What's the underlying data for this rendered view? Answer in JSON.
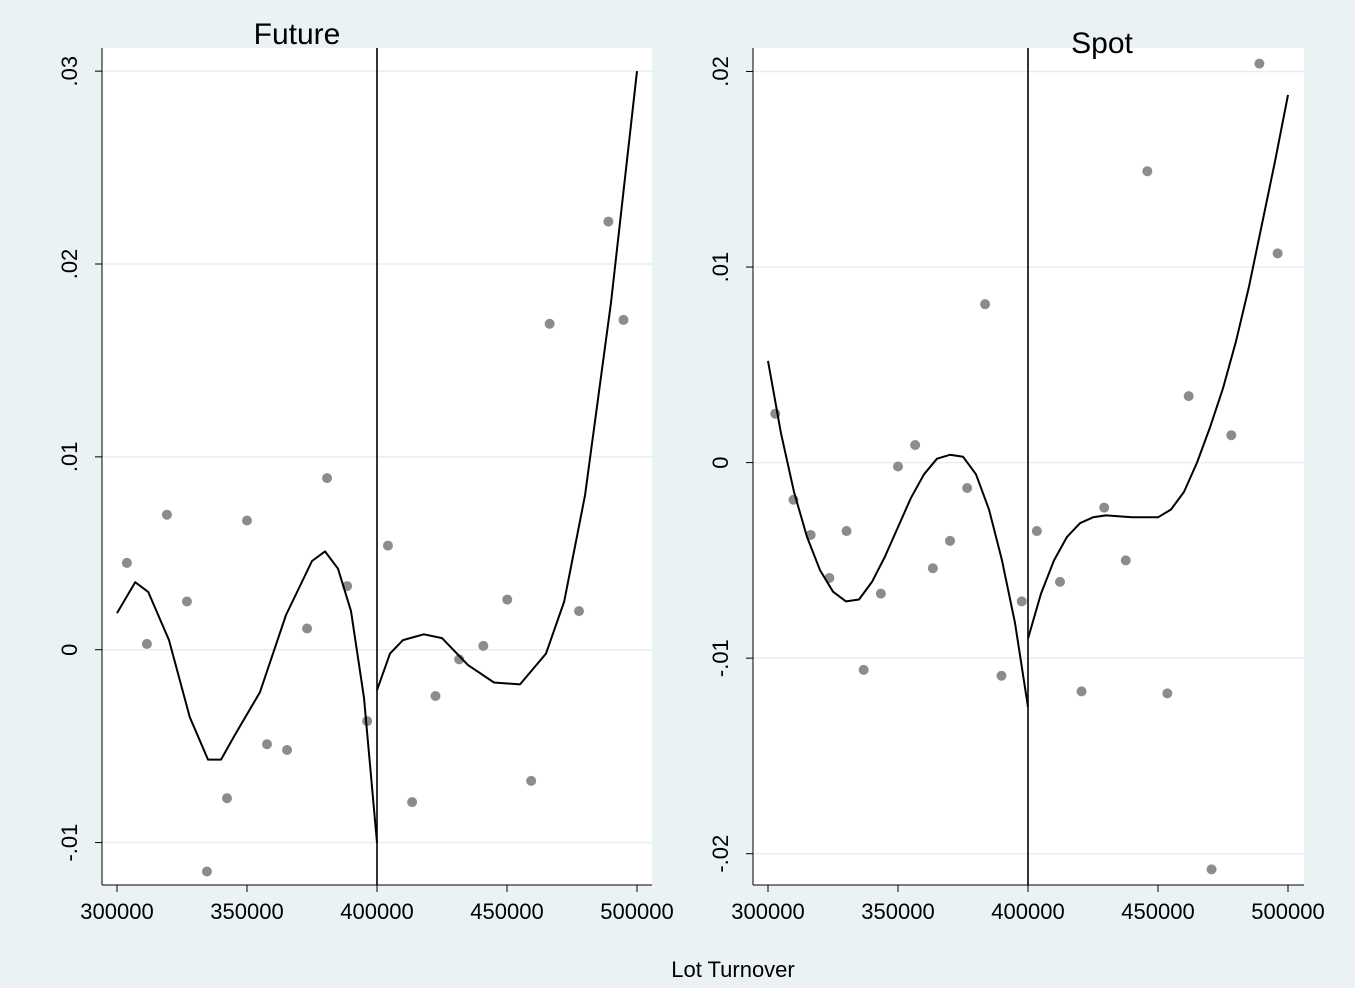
{
  "figure": {
    "xlabel_shared": "Lot Turnover"
  },
  "chart_data": [
    {
      "type": "scatter",
      "title": "Future",
      "xlabel": "",
      "ylabel": "",
      "xlim": [
        300000,
        500000
      ],
      "ylim": [
        -0.0122,
        0.0312
      ],
      "x_ticks": [
        300000,
        350000,
        400000,
        450000,
        500000
      ],
      "x_tick_labels": [
        "300000",
        "350000",
        "400000",
        "450000",
        "500000"
      ],
      "y_ticks": [
        -0.01,
        0,
        0.01,
        0.02,
        0.03
      ],
      "y_tick_labels": [
        "-.01",
        "0",
        ".01",
        ".02",
        ".03"
      ],
      "grid": true,
      "cutoff": 400000,
      "series": [
        {
          "kind": "points",
          "color": "#8c8c8c",
          "points": [
            [
              303800,
              0.0045
            ],
            [
              311500,
              0.0003
            ],
            [
              319200,
              0.007
            ],
            [
              326900,
              0.0025
            ],
            [
              334600,
              -0.0115
            ],
            [
              342300,
              -0.0077
            ],
            [
              350000,
              0.0067
            ],
            [
              357700,
              -0.0049
            ],
            [
              365400,
              -0.0052
            ],
            [
              373100,
              0.0011
            ],
            [
              380800,
              0.0089
            ],
            [
              388500,
              0.0033
            ],
            [
              396200,
              -0.0037
            ],
            [
              404200,
              0.0054
            ],
            [
              413500,
              -0.0079
            ],
            [
              422500,
              -0.0024
            ],
            [
              431600,
              -0.0005
            ],
            [
              440900,
              0.0002
            ],
            [
              450100,
              0.0026
            ],
            [
              459300,
              -0.0068
            ],
            [
              466400,
              0.0169
            ],
            [
              477700,
              0.002
            ],
            [
              489000,
              0.0222
            ],
            [
              494800,
              0.0171
            ]
          ]
        },
        {
          "kind": "fit-left",
          "color": "#000000",
          "points": [
            [
              300000,
              0.0019
            ],
            [
              307000,
              0.0035
            ],
            [
              312000,
              0.003
            ],
            [
              320000,
              0.0005
            ],
            [
              328000,
              -0.0035
            ],
            [
              335000,
              -0.0057
            ],
            [
              340000,
              -0.0057
            ],
            [
              345000,
              -0.0045
            ],
            [
              355000,
              -0.0022
            ],
            [
              365000,
              0.0018
            ],
            [
              375000,
              0.0046
            ],
            [
              380000,
              0.0051
            ],
            [
              385000,
              0.0042
            ],
            [
              390000,
              0.002
            ],
            [
              395000,
              -0.0025
            ],
            [
              400000,
              -0.01
            ]
          ]
        },
        {
          "kind": "fit-right",
          "color": "#000000",
          "points": [
            [
              400000,
              -0.0021
            ],
            [
              405000,
              -0.0002
            ],
            [
              410000,
              0.0005
            ],
            [
              418000,
              0.0008
            ],
            [
              425000,
              0.0006
            ],
            [
              435000,
              -0.0008
            ],
            [
              445000,
              -0.0017
            ],
            [
              455000,
              -0.0018
            ],
            [
              465000,
              -0.0002
            ],
            [
              472000,
              0.0025
            ],
            [
              480000,
              0.008
            ],
            [
              485000,
              0.013
            ],
            [
              490000,
              0.018
            ],
            [
              495000,
              0.024
            ],
            [
              500000,
              0.03
            ]
          ]
        }
      ]
    },
    {
      "type": "scatter",
      "title": "Spot",
      "xlabel": "",
      "ylabel": "",
      "xlim": [
        300000,
        500000
      ],
      "ylim": [
        -0.0216,
        0.0212
      ],
      "x_ticks": [
        300000,
        350000,
        400000,
        450000,
        500000
      ],
      "x_tick_labels": [
        "300000",
        "350000",
        "400000",
        "450000",
        "500000"
      ],
      "y_ticks": [
        -0.02,
        -0.01,
        0,
        0.01,
        0.02
      ],
      "y_tick_labels": [
        "-.02",
        "-.01",
        "0",
        ".01",
        ".02"
      ],
      "grid": true,
      "cutoff": 400000,
      "series": [
        {
          "kind": "points",
          "color": "#8c8c8c",
          "points": [
            [
              302800,
              0.0025
            ],
            [
              309800,
              -0.0019
            ],
            [
              316400,
              -0.0037
            ],
            [
              323600,
              -0.0059
            ],
            [
              330200,
              -0.0035
            ],
            [
              336800,
              -0.0106
            ],
            [
              343400,
              -0.0067
            ],
            [
              350000,
              -0.0002
            ],
            [
              356600,
              0.0009
            ],
            [
              363400,
              -0.0054
            ],
            [
              370000,
              -0.004
            ],
            [
              376600,
              -0.0013
            ],
            [
              383500,
              0.0081
            ],
            [
              389800,
              -0.0109
            ],
            [
              397600,
              -0.0071
            ],
            [
              403400,
              -0.0035
            ],
            [
              412300,
              -0.0061
            ],
            [
              420600,
              -0.0117
            ],
            [
              429300,
              -0.0023
            ],
            [
              437600,
              -0.005
            ],
            [
              445900,
              0.0149
            ],
            [
              453600,
              -0.0118
            ],
            [
              461800,
              0.0034
            ],
            [
              470600,
              -0.0208
            ],
            [
              478200,
              0.0014
            ],
            [
              489000,
              0.0204
            ],
            [
              496000,
              0.0107
            ]
          ]
        },
        {
          "kind": "fit-left",
          "color": "#000000",
          "points": [
            [
              300000,
              0.0052
            ],
            [
              305000,
              0.0015
            ],
            [
              310000,
              -0.0015
            ],
            [
              315000,
              -0.0038
            ],
            [
              320000,
              -0.0055
            ],
            [
              325000,
              -0.0066
            ],
            [
              330000,
              -0.0071
            ],
            [
              335000,
              -0.007
            ],
            [
              340000,
              -0.0061
            ],
            [
              345000,
              -0.0048
            ],
            [
              350000,
              -0.0033
            ],
            [
              355000,
              -0.0018
            ],
            [
              360000,
              -0.0006
            ],
            [
              365000,
              0.0002
            ],
            [
              370000,
              0.0004
            ],
            [
              375000,
              0.0003
            ],
            [
              380000,
              -0.0006
            ],
            [
              385000,
              -0.0024
            ],
            [
              390000,
              -0.005
            ],
            [
              395000,
              -0.0082
            ],
            [
              400000,
              -0.0125
            ]
          ]
        },
        {
          "kind": "fit-right",
          "color": "#000000",
          "points": [
            [
              400000,
              -0.009
            ],
            [
              405000,
              -0.0067
            ],
            [
              410000,
              -0.005
            ],
            [
              415000,
              -0.0038
            ],
            [
              420000,
              -0.0031
            ],
            [
              425000,
              -0.0028
            ],
            [
              430000,
              -0.0027
            ],
            [
              440000,
              -0.0028
            ],
            [
              450000,
              -0.0028
            ],
            [
              455000,
              -0.0024
            ],
            [
              460000,
              -0.0015
            ],
            [
              465000,
              0.0
            ],
            [
              470000,
              0.0018
            ],
            [
              475000,
              0.0038
            ],
            [
              480000,
              0.0062
            ],
            [
              485000,
              0.009
            ],
            [
              490000,
              0.0122
            ],
            [
              495000,
              0.0154
            ],
            [
              500000,
              0.0188
            ]
          ]
        }
      ]
    }
  ]
}
